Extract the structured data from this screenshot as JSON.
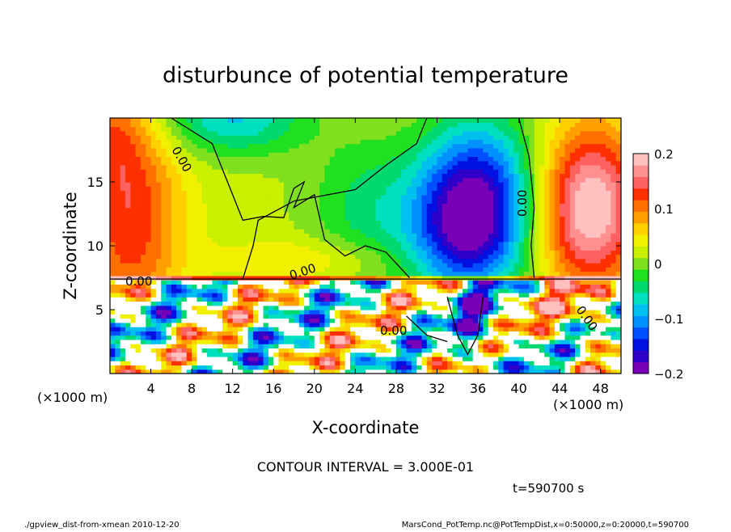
{
  "chart_data": {
    "type": "heatmap",
    "title": "disturbunce of potential temperature",
    "xlabel": "X-coordinate",
    "ylabel": "Z-coordinate",
    "x_unit_left": "(×1000 m)",
    "x_unit_right": "(×1000 m)",
    "x_ticks": [
      "4",
      "8",
      "12",
      "16",
      "20",
      "24",
      "28",
      "32",
      "36",
      "40",
      "44",
      "48"
    ],
    "y_ticks": [
      "5",
      "10",
      "15"
    ],
    "xlim": [
      0,
      50
    ],
    "ylim": [
      0,
      20
    ],
    "colorbar_ticks": [
      "0.2",
      "0.1",
      "0",
      "−0.1",
      "−0.2"
    ],
    "colorbar_range": [
      -0.2,
      0.2
    ],
    "contour_labels": [
      "0.00",
      "0.00",
      "0.00",
      "0.00",
      "0.00",
      "0.00"
    ],
    "contour_interval_text": "CONTOUR INTERVAL = 3.000E-01",
    "time_text": "t=590700 s",
    "footer_left": "./gpview_dist-from-xmean  2010-12-20",
    "footer_right": "MarsCond_PotTemp.nc@PotTempDist,x=0:50000,z=0:20000,t=590700",
    "palette": [
      "#7a00b8",
      "#3000c8",
      "#0010e0",
      "#0050ff",
      "#0090ff",
      "#00c0f0",
      "#00e0c0",
      "#00d870",
      "#20e020",
      "#80e020",
      "#c8f000",
      "#f0f000",
      "#ffd000",
      "#ffa000",
      "#ff7000",
      "#ff3000",
      "#ff6060",
      "#ff9090",
      "#ffc0c0"
    ]
  }
}
